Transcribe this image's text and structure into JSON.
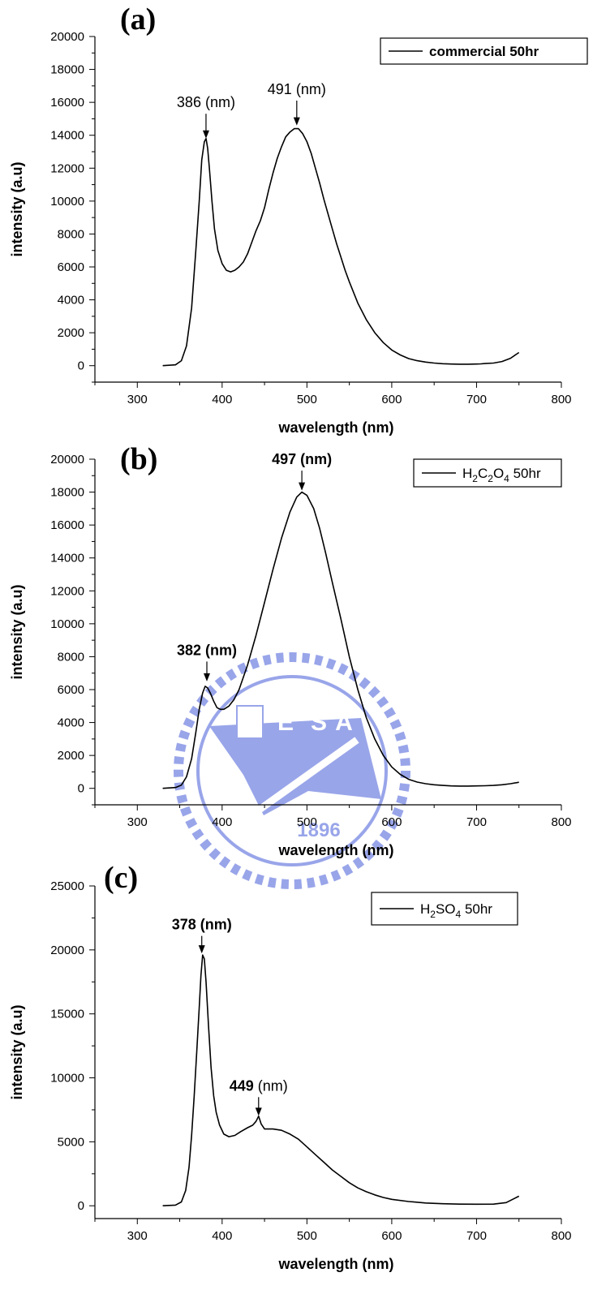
{
  "chart_data": [
    {
      "type": "line",
      "panel_label": "(a)",
      "xlabel": "wavelength (nm)",
      "ylabel": "intensity (a.u)",
      "xlim": [
        250,
        800
      ],
      "ylim": [
        -1000,
        20000
      ],
      "xticks": [
        "300",
        "400",
        "500",
        "600",
        "700",
        "800"
      ],
      "yticks": [
        "0",
        "2000",
        "4000",
        "6000",
        "8000",
        "10000",
        "12000",
        "14000",
        "16000",
        "18000",
        "20000"
      ],
      "legend": {
        "label": "commercial 50hr",
        "bold": true,
        "placement": "top-right"
      },
      "annotations": [
        {
          "prefix": "386",
          "suffix": " (nm)",
          "prefix_bold": false,
          "x": 381,
          "y": 13700,
          "label_y": 15700
        },
        {
          "prefix": "491",
          "suffix": " (nm)",
          "prefix_bold": false,
          "x": 488,
          "y": 14500,
          "label_y": 16500
        }
      ],
      "series": [
        {
          "points": [
            [
              330,
              0
            ],
            [
              345,
              50
            ],
            [
              352,
              300
            ],
            [
              358,
              1200
            ],
            [
              364,
              3500
            ],
            [
              369,
              7000
            ],
            [
              373,
              10000
            ],
            [
              376,
              12500
            ],
            [
              379,
              13600
            ],
            [
              381,
              13800
            ],
            [
              383,
              13200
            ],
            [
              385,
              12000
            ],
            [
              388,
              10000
            ],
            [
              391,
              8300
            ],
            [
              395,
              7000
            ],
            [
              400,
              6200
            ],
            [
              405,
              5800
            ],
            [
              410,
              5700
            ],
            [
              415,
              5800
            ],
            [
              420,
              6000
            ],
            [
              425,
              6300
            ],
            [
              430,
              6800
            ],
            [
              435,
              7500
            ],
            [
              440,
              8200
            ],
            [
              445,
              8800
            ],
            [
              450,
              9600
            ],
            [
              455,
              10700
            ],
            [
              460,
              11700
            ],
            [
              465,
              12600
            ],
            [
              470,
              13300
            ],
            [
              475,
              13900
            ],
            [
              480,
              14200
            ],
            [
              485,
              14400
            ],
            [
              490,
              14400
            ],
            [
              495,
              14100
            ],
            [
              500,
              13600
            ],
            [
              505,
              12900
            ],
            [
              510,
              12000
            ],
            [
              515,
              11100
            ],
            [
              520,
              10100
            ],
            [
              525,
              9200
            ],
            [
              530,
              8300
            ],
            [
              535,
              7400
            ],
            [
              540,
              6600
            ],
            [
              545,
              5800
            ],
            [
              550,
              5100
            ],
            [
              560,
              3800
            ],
            [
              570,
              2800
            ],
            [
              580,
              2000
            ],
            [
              590,
              1400
            ],
            [
              600,
              950
            ],
            [
              610,
              650
            ],
            [
              620,
              430
            ],
            [
              630,
              300
            ],
            [
              640,
              220
            ],
            [
              650,
              160
            ],
            [
              660,
              120
            ],
            [
              670,
              100
            ],
            [
              680,
              90
            ],
            [
              690,
              90
            ],
            [
              700,
              100
            ],
            [
              705,
              110
            ],
            [
              710,
              130
            ],
            [
              720,
              160
            ],
            [
              730,
              250
            ],
            [
              740,
              450
            ],
            [
              750,
              800
            ]
          ]
        }
      ]
    },
    {
      "type": "line",
      "panel_label": "(b)",
      "xlabel": "wavelength (nm)",
      "ylabel": "intensity (a.u)",
      "xlim": [
        250,
        800
      ],
      "ylim": [
        -1000,
        20000
      ],
      "xticks": [
        "300",
        "400",
        "500",
        "600",
        "700",
        "800"
      ],
      "yticks": [
        "0",
        "2000",
        "4000",
        "6000",
        "8000",
        "10000",
        "12000",
        "14000",
        "16000",
        "18000",
        "20000"
      ],
      "legend": {
        "label_parts": [
          "H",
          "2",
          "C",
          "2",
          "O",
          "4",
          " 50hr"
        ],
        "bold": false,
        "placement": "top-right"
      },
      "annotations": [
        {
          "prefix": "382 (nm)",
          "suffix": "",
          "prefix_bold": true,
          "x": 382,
          "y": 6400,
          "label_y": 8100
        },
        {
          "prefix": "497 (nm)",
          "suffix": "",
          "prefix_bold": true,
          "x": 494,
          "y": 18000,
          "label_y": 19700
        }
      ],
      "series": [
        {
          "points": [
            [
              330,
              0
            ],
            [
              345,
              50
            ],
            [
              352,
              200
            ],
            [
              358,
              700
            ],
            [
              364,
              1800
            ],
            [
              369,
              3400
            ],
            [
              373,
              4800
            ],
            [
              377,
              5800
            ],
            [
              380,
              6200
            ],
            [
              383,
              6100
            ],
            [
              386,
              5800
            ],
            [
              390,
              5300
            ],
            [
              394,
              4900
            ],
            [
              398,
              4800
            ],
            [
              402,
              4800
            ],
            [
              408,
              5000
            ],
            [
              414,
              5400
            ],
            [
              420,
              6000
            ],
            [
              430,
              7500
            ],
            [
              440,
              9300
            ],
            [
              450,
              11300
            ],
            [
              460,
              13300
            ],
            [
              470,
              15200
            ],
            [
              480,
              16800
            ],
            [
              488,
              17700
            ],
            [
              494,
              18000
            ],
            [
              500,
              17800
            ],
            [
              508,
              17000
            ],
            [
              515,
              15800
            ],
            [
              522,
              14300
            ],
            [
              530,
              12500
            ],
            [
              540,
              10300
            ],
            [
              550,
              8000
            ],
            [
              560,
              6000
            ],
            [
              570,
              4300
            ],
            [
              580,
              3000
            ],
            [
              590,
              2000
            ],
            [
              600,
              1300
            ],
            [
              610,
              850
            ],
            [
              620,
              550
            ],
            [
              630,
              380
            ],
            [
              640,
              280
            ],
            [
              650,
              220
            ],
            [
              660,
              180
            ],
            [
              670,
              150
            ],
            [
              680,
              140
            ],
            [
              690,
              140
            ],
            [
              700,
              150
            ],
            [
              710,
              160
            ],
            [
              720,
              180
            ],
            [
              730,
              220
            ],
            [
              740,
              280
            ],
            [
              750,
              370
            ]
          ]
        }
      ]
    },
    {
      "type": "line",
      "panel_label": "(c)",
      "xlabel": "wavelength (nm)",
      "ylabel": "intensity (a.u)",
      "xlim": [
        250,
        800
      ],
      "ylim": [
        -1000,
        25000
      ],
      "xticks": [
        "300",
        "400",
        "500",
        "600",
        "700",
        "800"
      ],
      "yticks": [
        "0",
        "5000",
        "10000",
        "15000",
        "20000",
        "25000"
      ],
      "legend": {
        "label_parts": [
          "H",
          "2",
          "SO",
          "4",
          " 50hr"
        ],
        "bold": false,
        "placement": "top-right"
      },
      "annotations": [
        {
          "prefix": "378 (nm)",
          "suffix": "",
          "prefix_bold": true,
          "x": 376,
          "y": 19600,
          "label_y": 21600
        },
        {
          "prefix": "449",
          "suffix": " (nm)",
          "prefix_bold": true,
          "x": 443,
          "y": 6900,
          "label_y": 9000
        }
      ],
      "series": [
        {
          "points": [
            [
              330,
              0
            ],
            [
              345,
              50
            ],
            [
              352,
              300
            ],
            [
              357,
              1200
            ],
            [
              361,
              3000
            ],
            [
              364,
              5500
            ],
            [
              367,
              8500
            ],
            [
              370,
              12000
            ],
            [
              373,
              15500
            ],
            [
              375,
              18000
            ],
            [
              377,
              19600
            ],
            [
              379,
              19300
            ],
            [
              381,
              17500
            ],
            [
              384,
              14000
            ],
            [
              387,
              10800
            ],
            [
              390,
              8600
            ],
            [
              393,
              7300
            ],
            [
              397,
              6300
            ],
            [
              402,
              5600
            ],
            [
              408,
              5400
            ],
            [
              415,
              5500
            ],
            [
              422,
              5800
            ],
            [
              430,
              6100
            ],
            [
              436,
              6300
            ],
            [
              440,
              6600
            ],
            [
              443,
              7000
            ],
            [
              446,
              6400
            ],
            [
              450,
              6000
            ],
            [
              460,
              6000
            ],
            [
              470,
              5900
            ],
            [
              480,
              5600
            ],
            [
              490,
              5200
            ],
            [
              500,
              4600
            ],
            [
              510,
              4000
            ],
            [
              520,
              3400
            ],
            [
              530,
              2800
            ],
            [
              540,
              2300
            ],
            [
              550,
              1800
            ],
            [
              560,
              1400
            ],
            [
              570,
              1100
            ],
            [
              580,
              850
            ],
            [
              590,
              650
            ],
            [
              600,
              500
            ],
            [
              620,
              330
            ],
            [
              640,
              220
            ],
            [
              660,
              160
            ],
            [
              680,
              130
            ],
            [
              700,
              120
            ],
            [
              720,
              130
            ],
            [
              735,
              250
            ],
            [
              750,
              750
            ]
          ]
        }
      ]
    }
  ],
  "watermark": {
    "letters": [
      "E",
      "S",
      "A"
    ],
    "year": "1896"
  }
}
